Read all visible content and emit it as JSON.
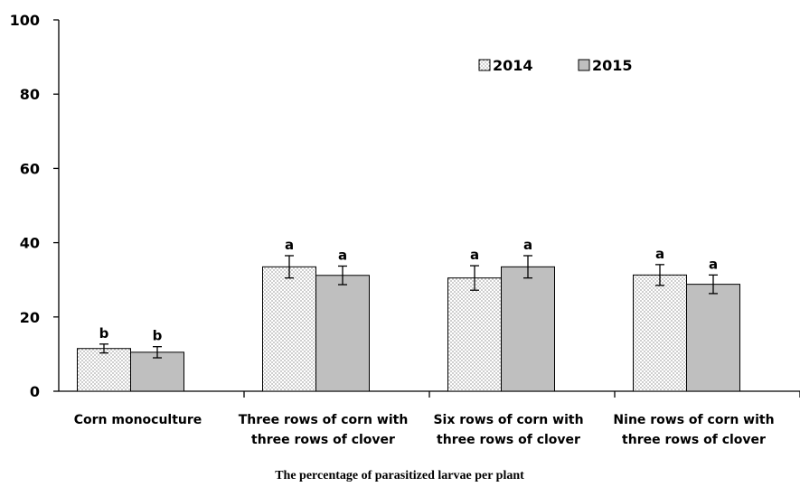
{
  "chart_data": {
    "type": "bar",
    "title": "",
    "xlabel": "The percentage of parasitized larvae per plant",
    "ylabel": "",
    "ylim": [
      0,
      100
    ],
    "yticks": [
      0,
      20,
      40,
      60,
      80,
      100
    ],
    "categories": [
      [
        "Corn monoculture"
      ],
      [
        "Three rows of corn with",
        "three rows of clover"
      ],
      [
        "Six rows of corn with",
        "three rows of clover"
      ],
      [
        "Nine rows of corn with",
        "three rows of clover"
      ]
    ],
    "series": [
      {
        "name": "2014",
        "values": [
          11.5,
          33.5,
          30.5,
          31.3
        ],
        "errors": [
          1.2,
          3.0,
          3.3,
          2.8
        ],
        "labels": [
          "b",
          "a",
          "a",
          "a"
        ],
        "pattern": "dotted",
        "color": "#ffffff"
      },
      {
        "name": "2015",
        "values": [
          10.5,
          31.2,
          33.5,
          28.8
        ],
        "errors": [
          1.5,
          2.5,
          3.0,
          2.5
        ],
        "labels": [
          "b",
          "a",
          "a",
          "a"
        ],
        "pattern": "solid",
        "color": "#bfbfbf"
      }
    ],
    "legend": {
      "position": "top-right"
    },
    "grid": false
  }
}
